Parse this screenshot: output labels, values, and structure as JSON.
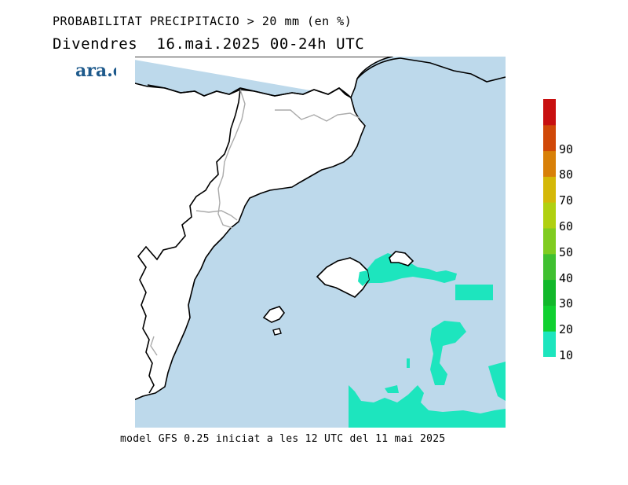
{
  "header": {
    "title": "PROBABILITAT PRECIPITACIO > 20 mm (en %)",
    "subtitle": "Divendres  16.mai.2025 00-24h UTC"
  },
  "brand": {
    "name": "ara.cat",
    "color": "#1e5a8c"
  },
  "footer": {
    "text": "model GFS 0.25 iniciat a les 12 UTC del 11 mai 2025"
  },
  "map": {
    "sea_color": "#bdd9eb",
    "land_color": "#ffffff",
    "coast_color": "#000000",
    "border_color": "#aaaaaa"
  },
  "legend": {
    "bins": [
      {
        "label": "10",
        "color": "#1de5be"
      },
      {
        "label": "20",
        "color": "#10d030"
      },
      {
        "label": "30",
        "color": "#12b82a"
      },
      {
        "label": "40",
        "color": "#40c030"
      },
      {
        "label": "50",
        "color": "#80cc20"
      },
      {
        "label": "60",
        "color": "#b0d010"
      },
      {
        "label": "70",
        "color": "#d4b808"
      },
      {
        "label": "80",
        "color": "#d88008"
      },
      {
        "label": "90",
        "color": "#d04808"
      },
      {
        "label": "",
        "color": "#c81010"
      }
    ]
  }
}
